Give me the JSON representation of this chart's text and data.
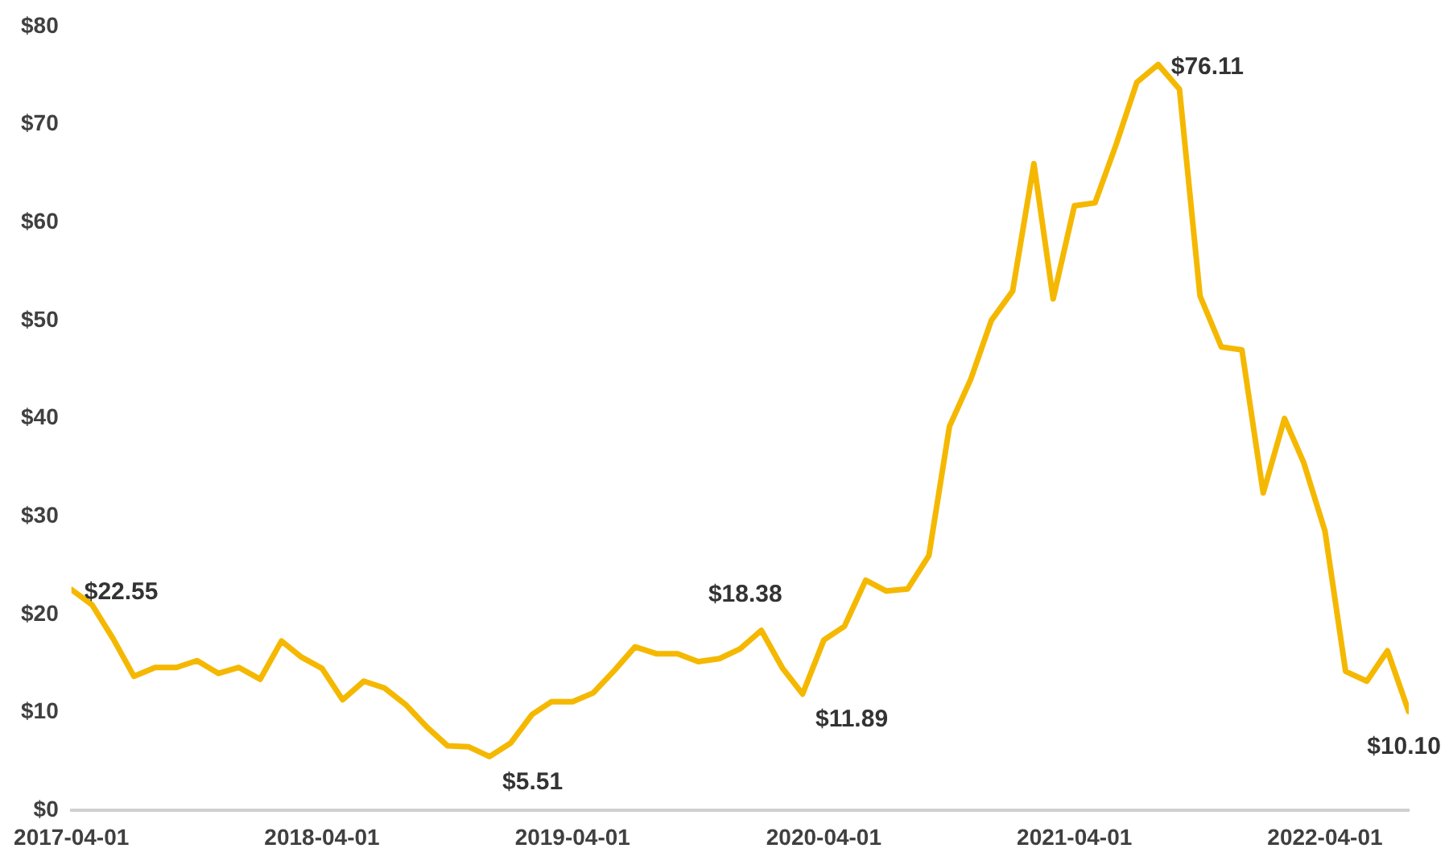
{
  "chart_data": {
    "type": "line",
    "x": [
      "2017-04",
      "2017-05",
      "2017-06",
      "2017-07",
      "2017-08",
      "2017-09",
      "2017-10",
      "2017-11",
      "2017-12",
      "2018-01",
      "2018-02",
      "2018-03",
      "2018-04",
      "2018-05",
      "2018-06",
      "2018-07",
      "2018-08",
      "2018-09",
      "2018-10",
      "2018-11",
      "2018-12",
      "2019-01",
      "2019-02",
      "2019-03",
      "2019-04",
      "2019-05",
      "2019-06",
      "2019-07",
      "2019-08",
      "2019-09",
      "2019-10",
      "2019-11",
      "2019-12",
      "2020-01",
      "2020-02",
      "2020-03",
      "2020-04",
      "2020-05",
      "2020-06",
      "2020-07",
      "2020-08",
      "2020-09",
      "2020-10",
      "2020-11",
      "2020-12",
      "2021-01",
      "2021-02",
      "2021-03",
      "2021-04",
      "2021-05",
      "2021-06",
      "2021-07",
      "2021-08",
      "2021-09",
      "2021-10",
      "2021-11",
      "2021-12",
      "2022-01",
      "2022-02",
      "2022-03",
      "2022-04",
      "2022-05",
      "2022-06",
      "2022-07",
      "2022-08"
    ],
    "series": [
      {
        "color": "#f5b800",
        "values": [
          22.55,
          21,
          17.5,
          13.7,
          14.6,
          14.6,
          15.3,
          14,
          14.6,
          13.4,
          17.3,
          15.7,
          14.5,
          11.3,
          13.2,
          12.5,
          10.8,
          8.5,
          6.6,
          6.5,
          5.51,
          6.9,
          9.8,
          11.1,
          11.1,
          12,
          14.3,
          16.7,
          16,
          16,
          15.2,
          15.5,
          16.5,
          18.38,
          14.5,
          11.89,
          17.4,
          18.8,
          23.5,
          22.4,
          22.6,
          26,
          39.2,
          44,
          50,
          53,
          66,
          52.2,
          61.7,
          62,
          68,
          74.3,
          76.11,
          73.6,
          52.5,
          47.3,
          47,
          32.4,
          40,
          35.5,
          28.5,
          14.2,
          13.2,
          16.3,
          10.1
        ],
        "value_labels": [
          "$22.55",
          null,
          null,
          null,
          null,
          null,
          null,
          null,
          null,
          null,
          null,
          null,
          null,
          null,
          null,
          null,
          null,
          null,
          null,
          null,
          "$5.51",
          null,
          null,
          null,
          null,
          null,
          null,
          null,
          null,
          null,
          null,
          null,
          null,
          "$18.38",
          null,
          "$11.89",
          null,
          null,
          null,
          null,
          null,
          null,
          null,
          null,
          null,
          null,
          null,
          null,
          null,
          null,
          null,
          null,
          "$76.11",
          null,
          null,
          null,
          null,
          null,
          null,
          null,
          null,
          null,
          null,
          null,
          "$10.10"
        ]
      }
    ],
    "xlim": [
      "2017-04",
      "2022-08"
    ],
    "xticks": [
      "2017-04-01",
      "2018-04-01",
      "2019-04-01",
      "2020-04-01",
      "2021-04-01",
      "2022-04-01"
    ],
    "ylim": [
      0,
      80
    ],
    "yticks": [
      {
        "value": 0,
        "label": "$0"
      },
      {
        "value": 10,
        "label": "$10"
      },
      {
        "value": 20,
        "label": "$20"
      },
      {
        "value": 30,
        "label": "$30"
      },
      {
        "value": 40,
        "label": "$40"
      },
      {
        "value": 50,
        "label": "$50"
      },
      {
        "value": 60,
        "label": "$60"
      },
      {
        "value": 70,
        "label": "$70"
      },
      {
        "value": 80,
        "label": "$80"
      }
    ],
    "grid": false,
    "legend": false,
    "marker": "none",
    "line_style": "solid"
  }
}
